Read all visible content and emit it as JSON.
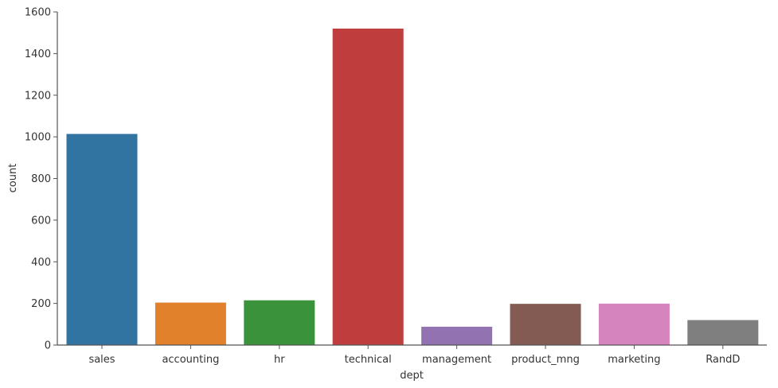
{
  "chart_data": {
    "type": "bar",
    "categories": [
      "sales",
      "accounting",
      "hr",
      "technical",
      "management",
      "product_mng",
      "marketing",
      "RandD"
    ],
    "values": [
      1014,
      204,
      215,
      1520,
      88,
      198,
      199,
      120
    ],
    "colors": [
      "#3274a1",
      "#e1812c",
      "#3a923a",
      "#c03d3e",
      "#9372b2",
      "#845b53",
      "#d684bd",
      "#7f7f7f"
    ],
    "xlabel": "dept",
    "ylabel": "count",
    "ylim": [
      0,
      1600
    ],
    "yticks": [
      0,
      200,
      400,
      600,
      800,
      1000,
      1200,
      1400,
      1600
    ],
    "grid": false,
    "legend": "none"
  }
}
